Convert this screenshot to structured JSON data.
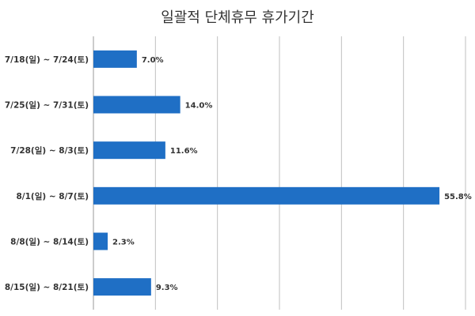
{
  "chart_data": {
    "type": "bar",
    "orientation": "horizontal",
    "title": "일괄적 단체휴무 휴가기간",
    "categories": [
      "7/18(일) ~ 7/24(토)",
      "7/25(일) ~ 7/31(토)",
      "7/28(일) ~ 8/3(토)",
      "8/1(일) ~ 8/7(토)",
      "8/8(일) ~ 8/14(토)",
      "8/15(일) ~ 8/21(토)"
    ],
    "values": [
      7.0,
      14.0,
      11.6,
      55.8,
      2.3,
      9.3
    ],
    "data_labels": [
      "7.0%",
      "14.0%",
      "11.6%",
      "55.8%",
      "2.3%",
      "9.3%"
    ],
    "xlim": [
      0,
      60
    ],
    "grid": true,
    "legend": "none",
    "colors": {
      "bar": "#1f6fc5",
      "grid": "#bfbfbf",
      "text": "#333333"
    }
  }
}
